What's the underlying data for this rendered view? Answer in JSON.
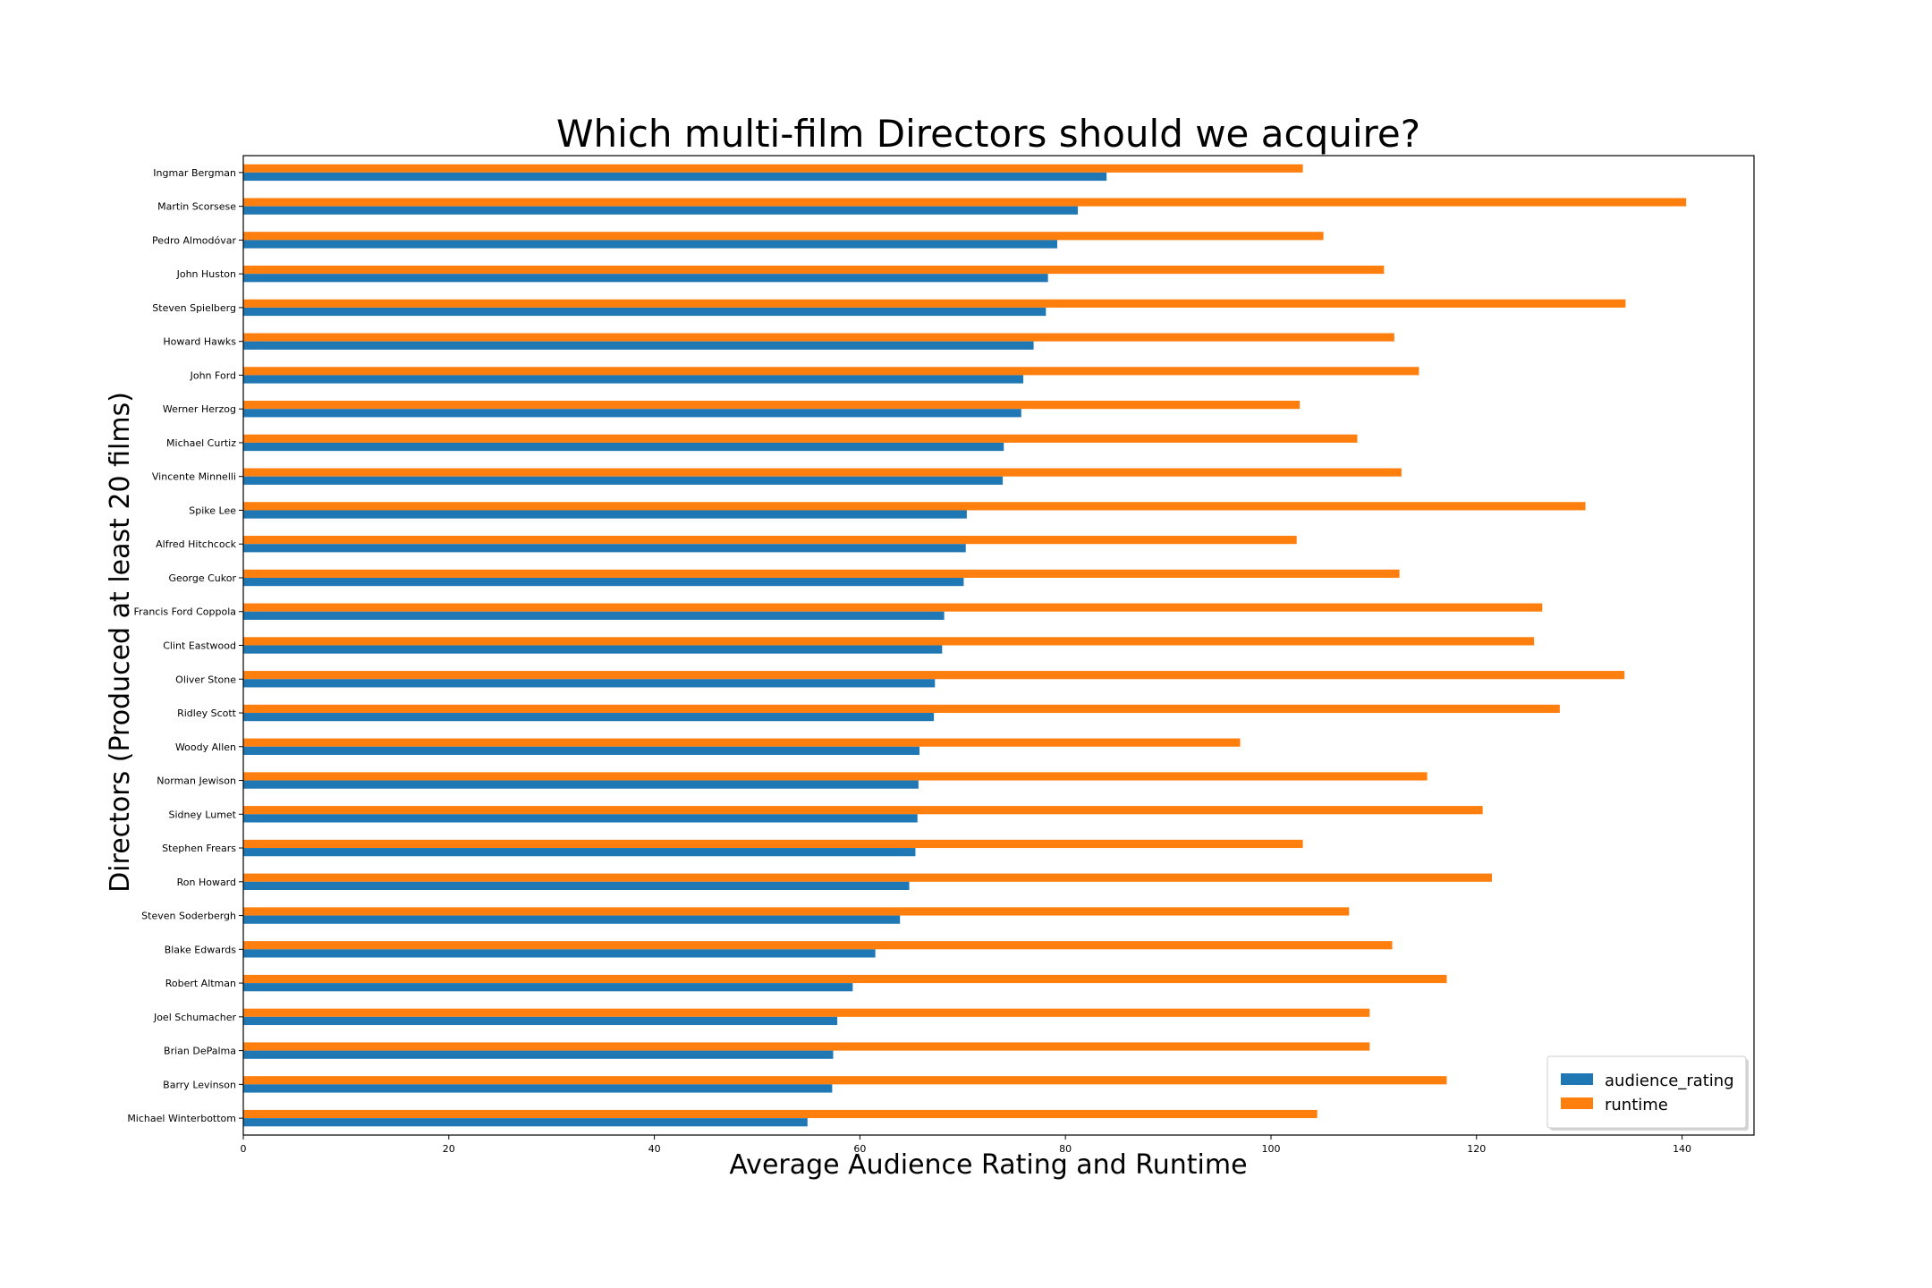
{
  "chart_data": {
    "type": "bar",
    "orientation": "horizontal",
    "title": "Which multi-film Directors should we acquire?",
    "xlabel": "Average Audience Rating and Runtime",
    "ylabel": "Directors (Produced at least 20 films)",
    "xlim": [
      0,
      147
    ],
    "xticks": [
      0,
      20,
      40,
      60,
      80,
      100,
      120,
      140
    ],
    "grid": false,
    "legend_position": "bottom-right",
    "categories": [
      "Ingmar Bergman",
      "Martin Scorsese",
      "Pedro Almodóvar",
      "John Huston",
      "Steven Spielberg",
      "Howard Hawks",
      "John Ford",
      "Werner Herzog",
      "Michael Curtiz",
      "Vincente Minnelli",
      "Spike Lee",
      "Alfred Hitchcock",
      "George Cukor",
      "Francis Ford Coppola",
      "Clint Eastwood",
      "Oliver Stone",
      "Ridley Scott",
      "Woody Allen",
      "Norman Jewison",
      "Sidney Lumet",
      "Stephen Frears",
      "Ron Howard",
      "Steven Soderbergh",
      "Blake Edwards",
      "Robert Altman",
      "Joel Schumacher",
      "Brian DePalma",
      "Barry Levinson",
      "Michael Winterbottom"
    ],
    "series": [
      {
        "name": "audience_rating",
        "color": "#1f77b4",
        "values": [
          84.0,
          81.2,
          79.2,
          78.3,
          78.1,
          76.9,
          75.9,
          75.7,
          74.0,
          73.9,
          70.4,
          70.3,
          70.1,
          68.2,
          68.0,
          67.3,
          67.2,
          65.8,
          65.7,
          65.6,
          65.4,
          64.8,
          63.9,
          61.5,
          59.3,
          57.8,
          57.4,
          57.3,
          54.9
        ]
      },
      {
        "name": "runtime",
        "color": "#ff7f0e",
        "values": [
          103.1,
          140.4,
          105.1,
          111.0,
          134.5,
          112.0,
          114.4,
          102.8,
          108.4,
          112.7,
          130.6,
          102.5,
          112.5,
          126.4,
          125.6,
          134.4,
          128.1,
          97.0,
          115.2,
          120.6,
          103.1,
          121.5,
          107.6,
          111.8,
          117.1,
          109.6,
          109.6,
          117.1,
          104.5
        ]
      }
    ]
  }
}
